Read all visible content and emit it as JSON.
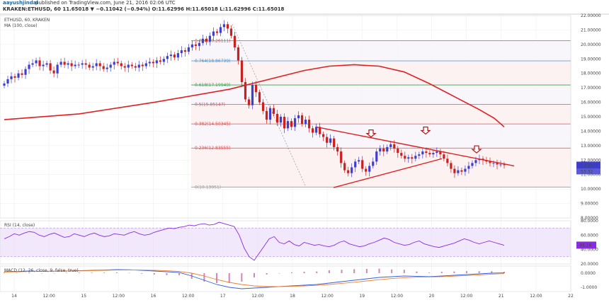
{
  "header": {
    "author": "aayushjindal",
    "published": "published on TradingView.com, June 21, 2016 02:06 UTC",
    "ohlc_line": "KRAKEN:ETHUSD, 60  11.65018  ▼ −0.11042 (−0.94%)  O:11.62996  H:11.65018  L:11.62996  C:11.65018"
  },
  "colors": {
    "up": "#3f3fcf",
    "down": "#cc2020",
    "ma": "#e02020",
    "rsi": "#8a2be2",
    "rsi_band": "#e8d8f8",
    "macd": "#3060e0",
    "signal": "#f08030",
    "hist": "#c050a0",
    "fib_red": "#e05050",
    "fib_blue": "#4a90c8",
    "fib_green": "#3ca050",
    "price_badge": "#3f3fcf"
  },
  "chart_data": [
    {
      "type": "candlestick",
      "title": "ETHUSD, 60, KRAKEN",
      "legend": [
        "ETHUSD, 60, KRAKEN",
        "MA (100, close)"
      ],
      "ylim": [
        8,
        22
      ],
      "y_ticks": [
        "22.00000",
        "21.00000",
        "20.00000",
        "19.00000",
        "18.00000",
        "17.00000",
        "16.00000",
        "15.00000",
        "14.00000",
        "13.00000",
        "12.00000",
        "11.00000",
        "10.00000",
        "9.00000",
        "8.00000"
      ],
      "x_ticks": [
        "14",
        "12:00",
        "15",
        "12:00",
        "16",
        "12:00",
        "17",
        "12:00",
        "18",
        "12:00",
        "19",
        "12:00",
        "20",
        "12:00",
        "21",
        "12:00",
        "22"
      ],
      "last_price": "11.65018",
      "countdown": "53:32",
      "close": [
        17.3,
        17.6,
        17.8,
        17.7,
        18.0,
        17.9,
        18.3,
        18.6,
        18.7,
        18.9,
        18.5,
        18.6,
        18.7,
        18.2,
        18.0,
        18.6,
        18.8,
        18.6,
        18.7,
        18.5,
        18.6,
        18.6,
        18.7,
        18.6,
        18.4,
        18.5,
        18.7,
        18.5,
        18.3,
        18.4,
        18.6,
        18.8,
        18.7,
        18.5,
        18.4,
        18.6,
        18.5,
        18.4,
        18.6,
        18.5,
        18.7,
        18.8,
        18.7,
        18.9,
        18.8,
        19.0,
        19.2,
        19.3,
        19.1,
        19.4,
        19.6,
        19.5,
        19.8,
        20.0,
        19.9,
        20.1,
        20.4,
        20.2,
        20.6,
        20.9,
        20.8,
        21.2,
        21.4,
        21.1,
        20.6,
        19.8,
        18.9,
        17.4,
        16.2,
        15.8,
        17.2,
        16.7,
        16.0,
        15.4,
        14.8,
        15.6,
        15.2,
        14.6,
        15.0,
        14.2,
        14.7,
        14.3,
        14.9,
        15.1,
        14.5,
        14.8,
        14.2,
        13.9,
        14.3,
        13.8,
        13.6,
        13.2,
        13.5,
        12.9,
        12.6,
        11.8,
        11.3,
        11.1,
        11.5,
        11.9,
        12.0,
        11.4,
        11.2,
        11.6,
        11.9,
        12.6,
        12.8,
        12.6,
        12.9,
        13.1,
        12.8,
        12.5,
        12.3,
        12.1,
        12.2,
        12.1,
        12.3,
        12.4,
        12.6,
        12.5,
        12.4,
        12.5,
        12.6,
        12.4,
        12.1,
        11.8,
        11.4,
        11.1,
        11.3,
        11.2,
        11.4,
        11.6,
        11.8,
        12.0,
        12.1,
        12.0,
        11.9,
        11.8,
        11.8,
        11.7,
        11.7,
        11.65
      ],
      "ma100": [
        [
          0,
          14.8
        ],
        [
          30,
          15.2
        ],
        [
          60,
          16.0
        ],
        [
          90,
          16.9
        ],
        [
          120,
          18.2
        ],
        [
          130,
          18.5
        ],
        [
          140,
          18.6
        ],
        [
          150,
          18.5
        ],
        [
          160,
          18.1
        ],
        [
          170,
          17.3
        ],
        [
          180,
          16.4
        ],
        [
          190,
          15.5
        ],
        [
          196,
          14.9
        ],
        [
          200,
          14.3
        ]
      ],
      "fibonacci": [
        {
          "ratio": "0.5",
          "label": "0.5(15.85147)",
          "value": 15.85147,
          "style": "red"
        },
        {
          "ratio": "0.786",
          "label": "0.786(20.26111)",
          "value": 20.26111,
          "style": "red"
        },
        {
          "ratio": "0.764",
          "label": "0.764(18.86739)",
          "value": 18.86739,
          "style": "blue"
        },
        {
          "ratio": "0.618",
          "label": "0.618(17.19949)",
          "value": 17.19949,
          "style": "green"
        },
        {
          "ratio": "0.382",
          "label": "0.382(14.50345)",
          "value": 14.50345,
          "style": "red"
        },
        {
          "ratio": "0.236",
          "label": "0.236(12.83555)",
          "value": 12.83555,
          "style": "red"
        },
        {
          "ratio": "0",
          "label": "0(10.13951)",
          "value": 10.13951,
          "style": "gray"
        }
      ],
      "annotations": [
        "down-arrow",
        "down-arrow",
        "down-arrow"
      ]
    },
    {
      "type": "line",
      "title": "RSI (14, close)",
      "ylim": [
        20,
        80
      ],
      "y_ticks": [
        "80.0000",
        "60.0000",
        "40.0000",
        "20.0000"
      ],
      "band": [
        30,
        70
      ],
      "values": [
        55,
        58,
        62,
        60,
        63,
        65,
        64,
        60,
        58,
        61,
        63,
        60,
        57,
        58,
        62,
        60,
        58,
        61,
        63,
        60,
        58,
        59,
        62,
        61,
        60,
        63,
        65,
        62,
        60,
        61,
        64,
        66,
        68,
        70,
        69,
        71,
        72,
        74,
        73,
        75,
        76,
        74,
        75,
        78,
        76,
        74,
        72,
        60,
        42,
        30,
        25,
        35,
        45,
        55,
        58,
        50,
        48,
        52,
        47,
        45,
        50,
        48,
        46,
        47,
        45,
        44,
        46,
        50,
        52,
        48,
        46,
        44,
        45,
        48,
        50,
        53,
        56,
        54,
        50,
        48,
        46,
        47,
        50,
        52,
        48,
        46,
        44,
        43,
        45,
        47,
        49,
        52,
        55,
        53,
        50,
        48,
        50,
        52,
        50,
        48,
        46
      ],
      "last_value": "46.16"
    },
    {
      "type": "line",
      "title": "MACD (12, 26, close, 9, false, true)",
      "y_ticks": [
        "0.0000",
        "-1.0000"
      ],
      "macd": [
        0.1,
        0.12,
        0.15,
        0.13,
        0.14,
        0.16,
        0.18,
        0.2,
        0.22,
        0.25,
        0.24,
        0.2,
        0.15,
        0.1,
        0.05,
        -0.2,
        -0.5,
        -0.8,
        -1.0,
        -1.1,
        -1.05,
        -1.0,
        -0.95,
        -0.9,
        -0.85,
        -0.8,
        -0.7,
        -0.6,
        -0.5,
        -0.4,
        -0.3,
        -0.25,
        -0.2,
        -0.22,
        -0.25,
        -0.2,
        -0.15,
        -0.1,
        -0.05,
        0.0,
        0.02
      ],
      "signal": [
        0.08,
        0.1,
        0.12,
        0.13,
        0.14,
        0.15,
        0.16,
        0.18,
        0.2,
        0.22,
        0.23,
        0.22,
        0.2,
        0.17,
        0.12,
        0.0,
        -0.2,
        -0.45,
        -0.65,
        -0.8,
        -0.9,
        -0.95,
        -0.95,
        -0.93,
        -0.9,
        -0.86,
        -0.8,
        -0.72,
        -0.64,
        -0.55,
        -0.46,
        -0.38,
        -0.32,
        -0.28,
        -0.27,
        -0.25,
        -0.21,
        -0.17,
        -0.12,
        -0.07,
        -0.03
      ]
    }
  ]
}
